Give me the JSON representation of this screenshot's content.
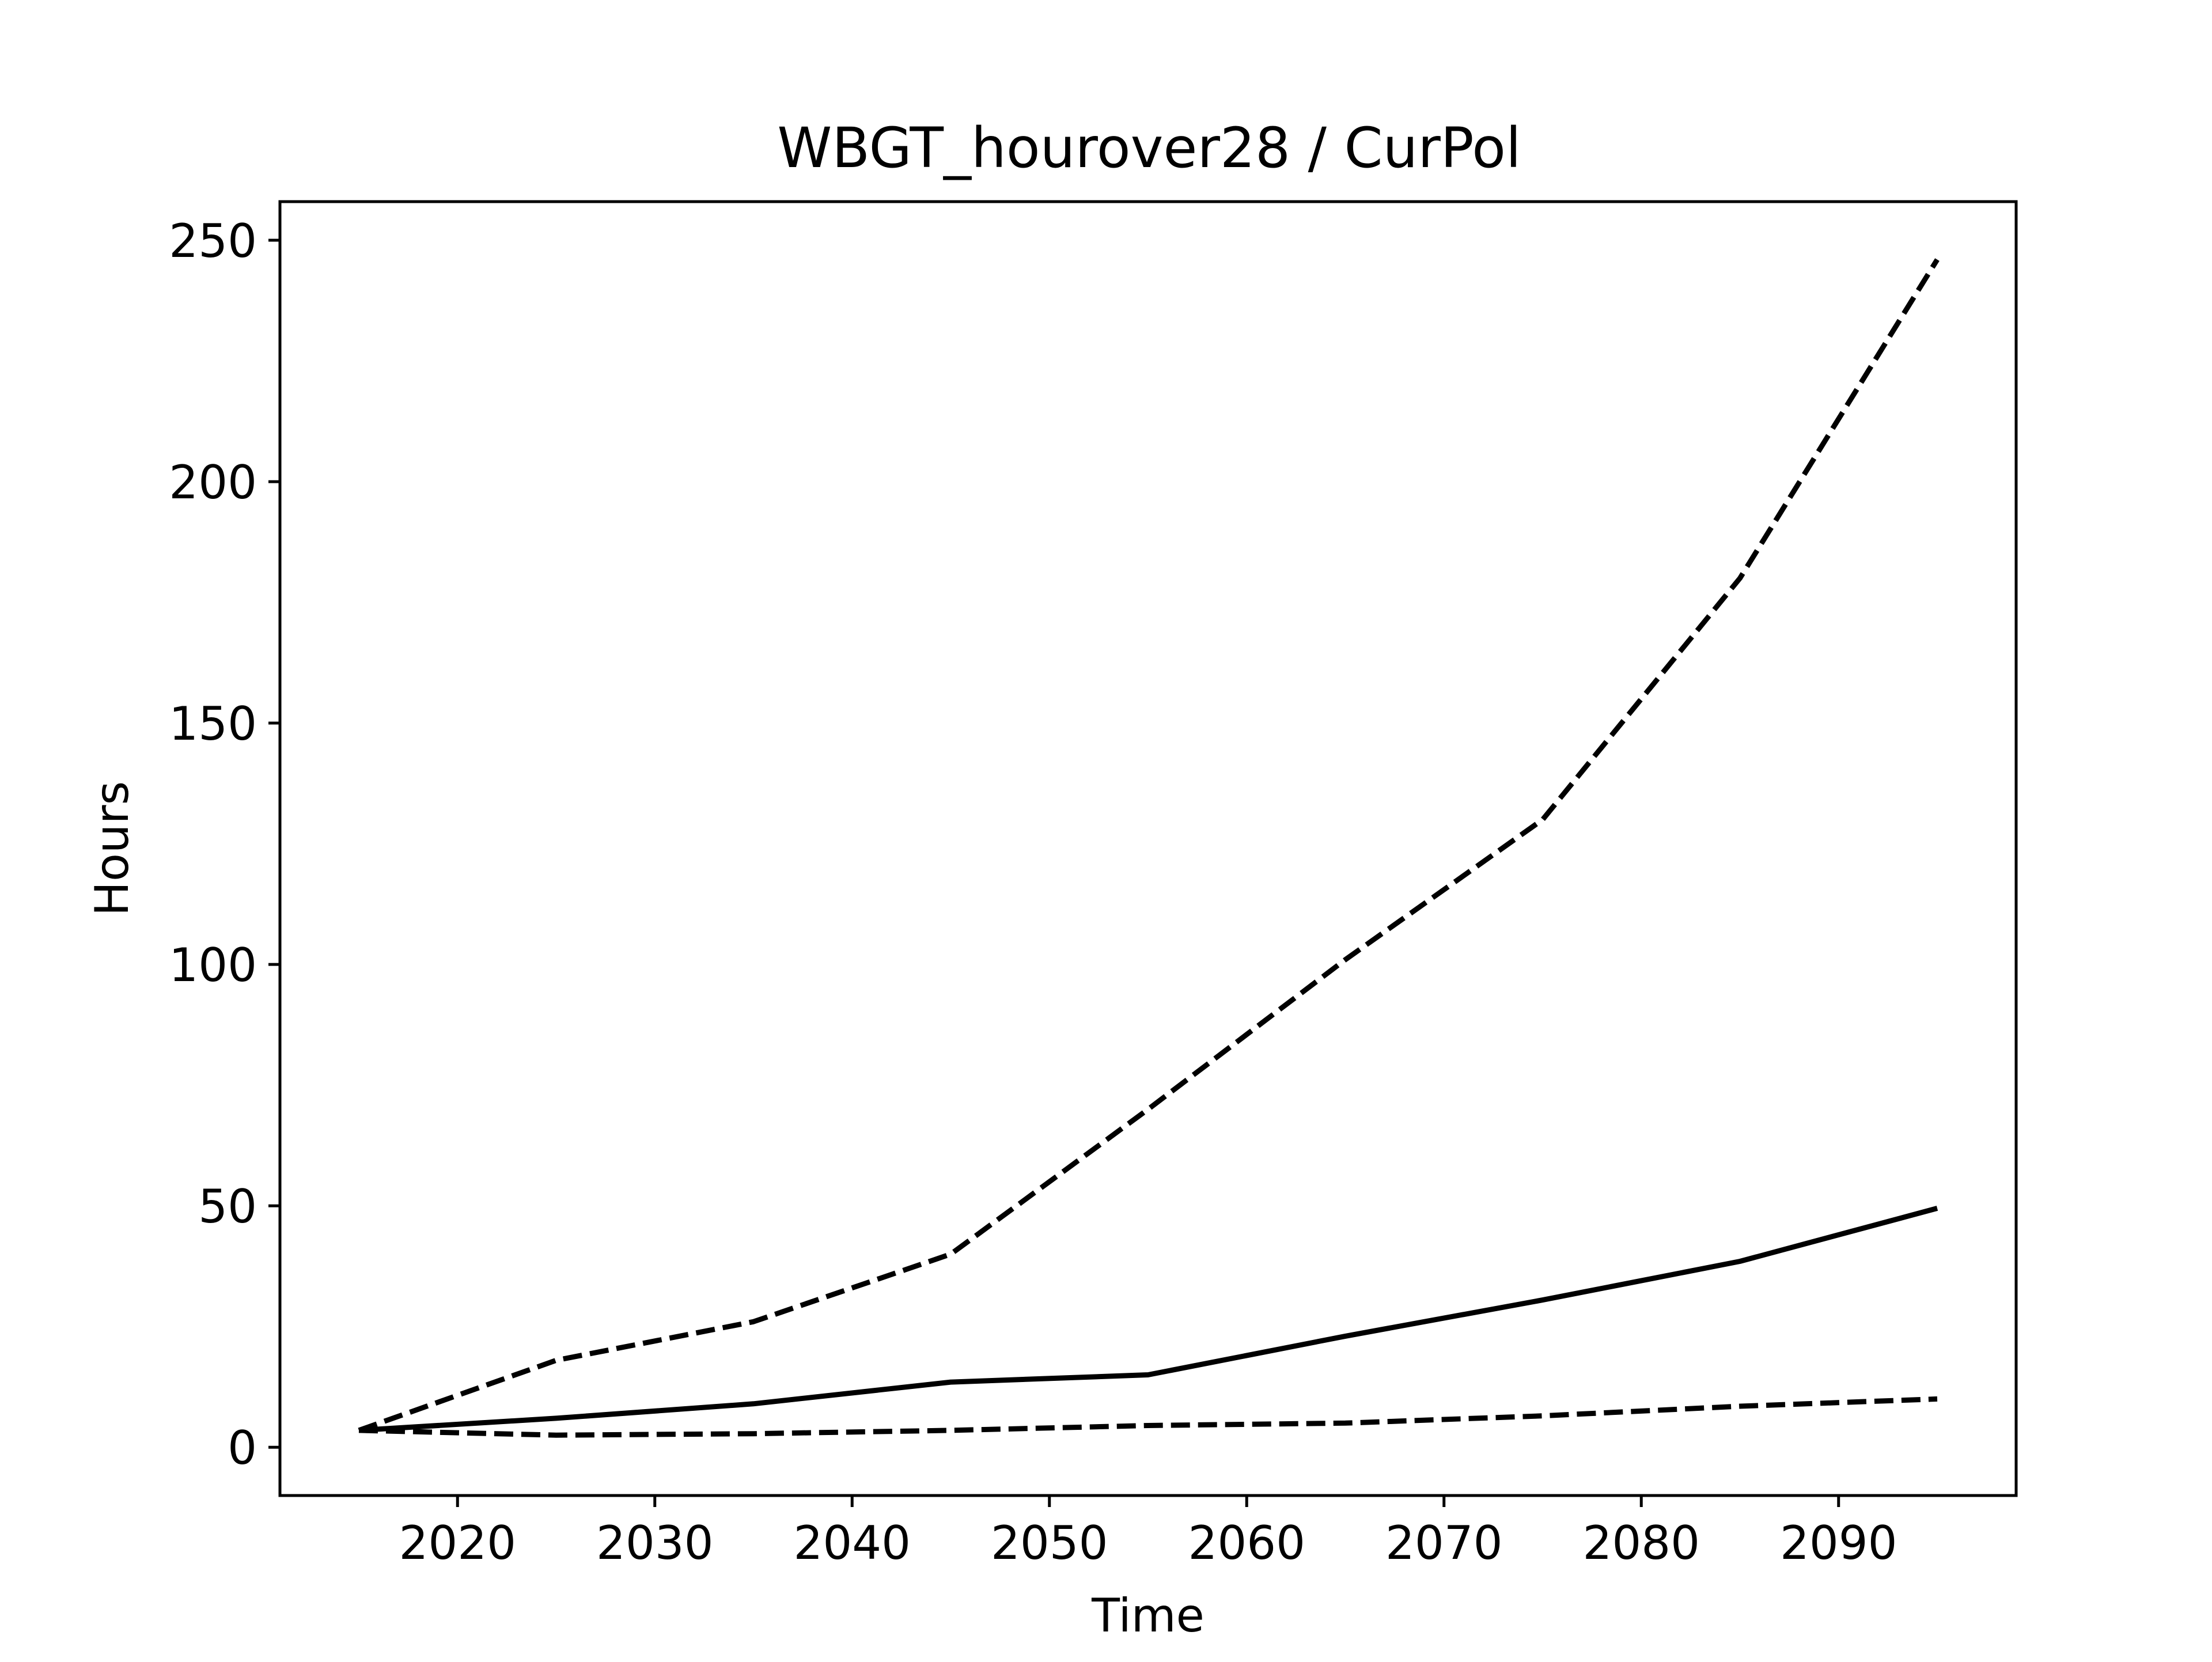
{
  "chart_data": {
    "type": "line",
    "title": "WBGT_hourover28 / CurPol",
    "xlabel": "Time",
    "ylabel": "Hours",
    "xlim": [
      2011,
      2099
    ],
    "ylim": [
      -10,
      258
    ],
    "xticks": [
      2020,
      2030,
      2040,
      2050,
      2060,
      2070,
      2080,
      2090
    ],
    "yticks": [
      0,
      50,
      100,
      150,
      200,
      250
    ],
    "grid": false,
    "legend": "none",
    "x": [
      2015,
      2025,
      2035,
      2045,
      2055,
      2065,
      2075,
      2085,
      2095
    ],
    "series": [
      {
        "style": "dashed",
        "color": "#000000",
        "values": [
          3.5,
          18,
          26,
          40,
          70,
          101,
          130,
          180,
          246
        ]
      },
      {
        "style": "solid",
        "color": "#000000",
        "values": [
          3.5,
          6,
          9,
          13.5,
          15,
          23,
          30.5,
          38.5,
          49.5
        ]
      },
      {
        "style": "dashed",
        "color": "#000000",
        "values": [
          3.5,
          2.5,
          2.8,
          3.5,
          4.5,
          5,
          6.5,
          8.5,
          10
        ]
      }
    ]
  }
}
